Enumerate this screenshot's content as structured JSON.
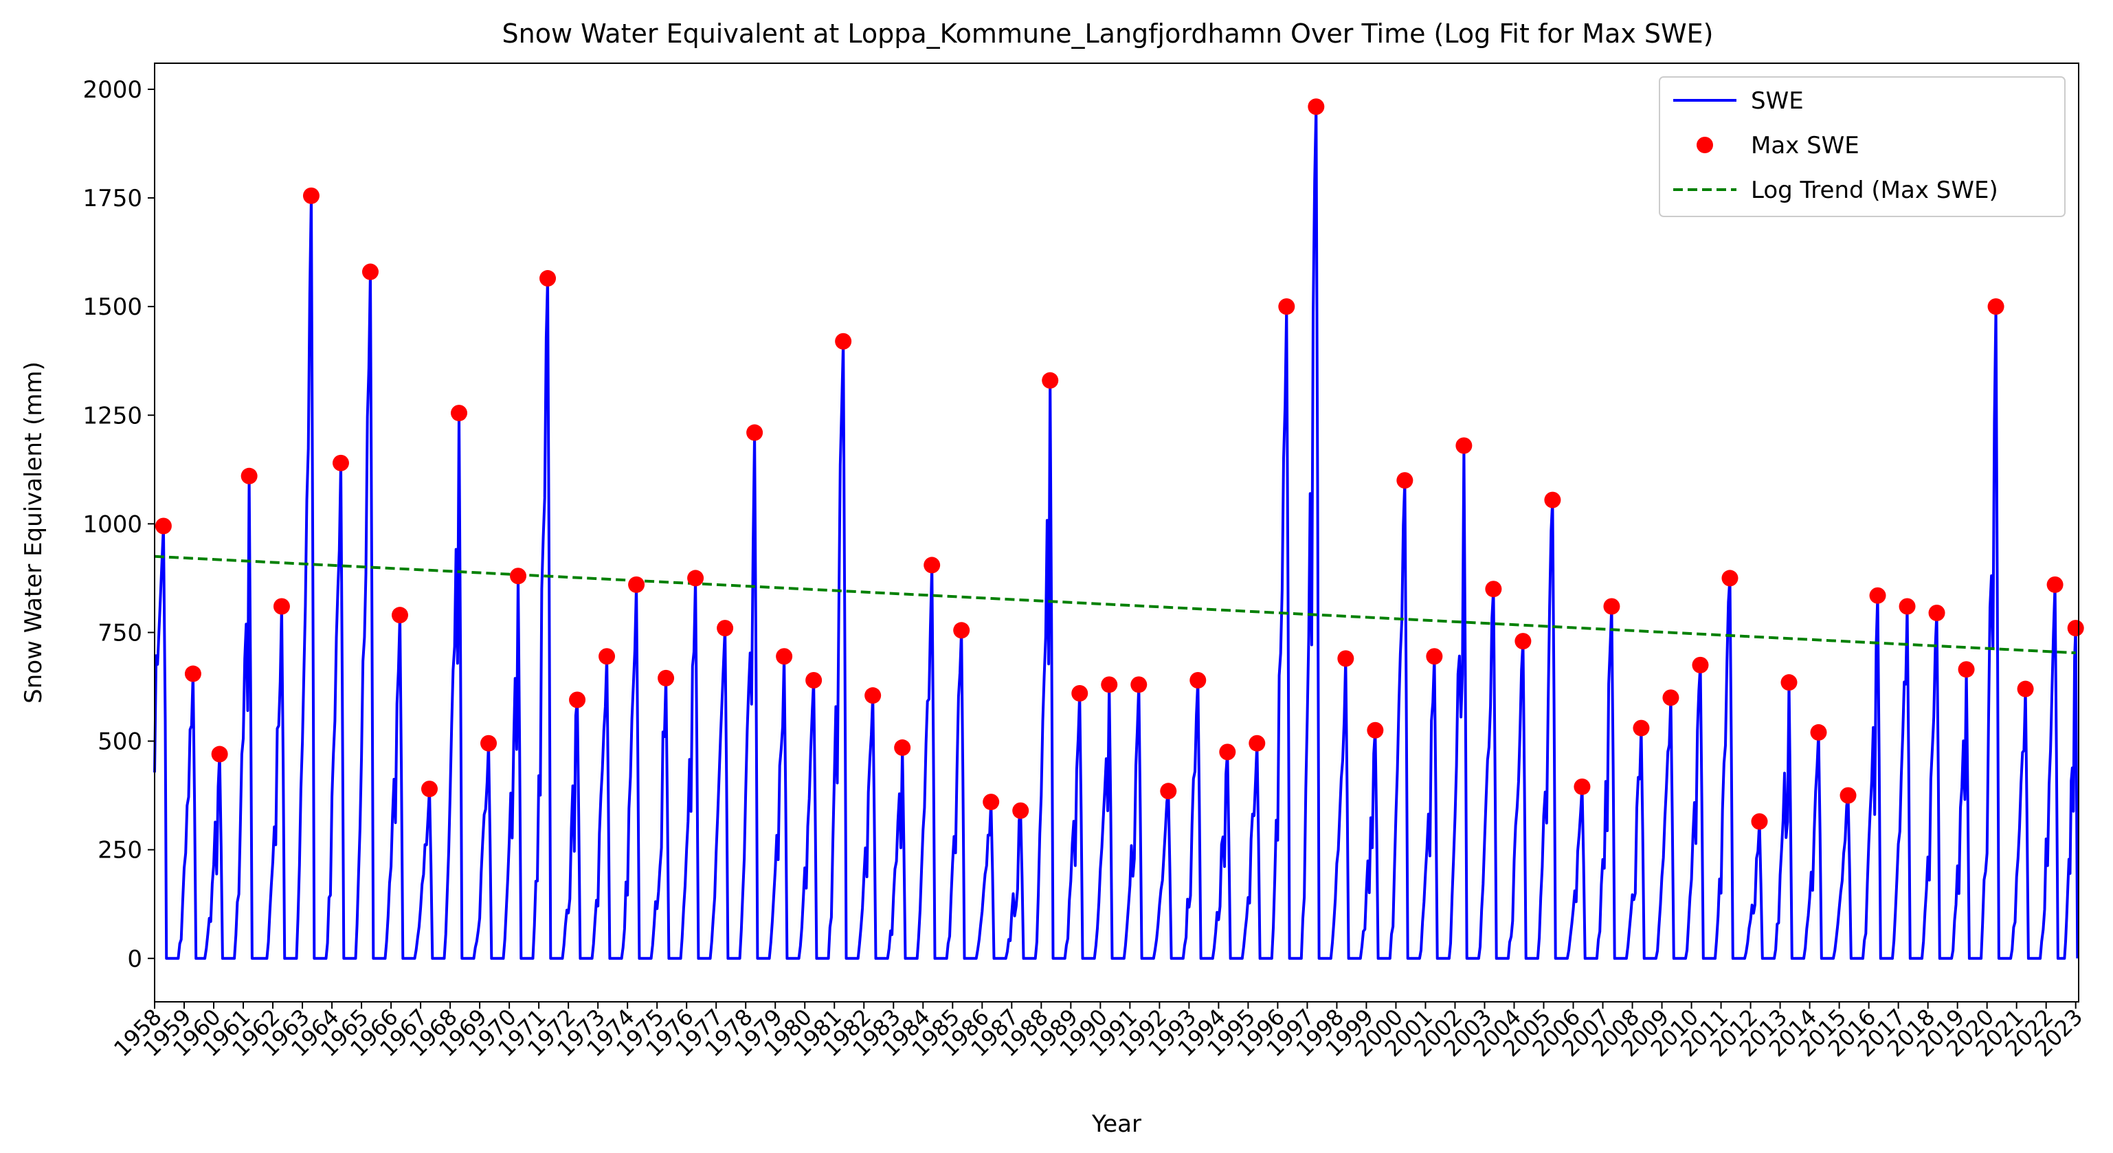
{
  "chart_data": {
    "type": "line",
    "title": "Snow Water Equivalent at Loppa_Kommune_Langfjordhamn Over Time (Log Fit for Max SWE)",
    "xlabel": "Year",
    "ylabel": "Snow Water Equivalent (mm)",
    "xlim": [
      1958,
      2023.1
    ],
    "ylim": [
      -100,
      2060
    ],
    "yticks": [
      0,
      250,
      500,
      750,
      1000,
      1250,
      1500,
      1750,
      2000
    ],
    "xticks": [
      1958,
      1959,
      1960,
      1961,
      1962,
      1963,
      1964,
      1965,
      1966,
      1967,
      1968,
      1969,
      1970,
      1971,
      1972,
      1973,
      1974,
      1975,
      1976,
      1977,
      1978,
      1979,
      1980,
      1981,
      1982,
      1983,
      1984,
      1985,
      1986,
      1987,
      1988,
      1989,
      1990,
      1991,
      1992,
      1993,
      1994,
      1995,
      1996,
      1997,
      1998,
      1999,
      2000,
      2001,
      2002,
      2003,
      2004,
      2005,
      2006,
      2007,
      2008,
      2009,
      2010,
      2011,
      2012,
      2013,
      2014,
      2015,
      2016,
      2017,
      2018,
      2019,
      2020,
      2021,
      2022,
      2023
    ],
    "grid": false,
    "legend_position": "upper right",
    "series": [
      {
        "name": "SWE",
        "kind": "line",
        "color": "#0000ff"
      },
      {
        "name": "Max SWE",
        "kind": "scatter",
        "color": "#ff0000",
        "x": [
          1958.3,
          1959.3,
          1960.2,
          1961.2,
          1962.3,
          1963.3,
          1964.3,
          1965.3,
          1966.3,
          1967.3,
          1968.3,
          1969.3,
          1970.3,
          1971.3,
          1972.3,
          1973.3,
          1974.3,
          1975.3,
          1976.3,
          1977.3,
          1978.3,
          1979.3,
          1980.3,
          1981.3,
          1982.3,
          1983.3,
          1984.3,
          1985.3,
          1986.3,
          1987.3,
          1988.3,
          1989.3,
          1990.3,
          1991.3,
          1992.3,
          1993.3,
          1994.3,
          1995.3,
          1996.3,
          1997.3,
          1998.3,
          1999.3,
          2000.3,
          2001.3,
          2002.3,
          2003.3,
          2004.3,
          2005.3,
          2006.3,
          2007.3,
          2008.3,
          2009.3,
          2010.3,
          2011.3,
          2012.3,
          2013.3,
          2014.3,
          2015.3,
          2016.3,
          2017.3,
          2018.3,
          2019.3,
          2020.3,
          2021.3,
          2022.3,
          2023.0
        ],
        "y": [
          995,
          655,
          470,
          1110,
          810,
          1755,
          1140,
          1580,
          790,
          390,
          1255,
          495,
          880,
          1565,
          595,
          695,
          860,
          645,
          875,
          760,
          1210,
          695,
          640,
          1420,
          605,
          485,
          905,
          755,
          360,
          340,
          1330,
          610,
          630,
          630,
          385,
          640,
          475,
          495,
          1500,
          1960,
          690,
          525,
          1100,
          695,
          1180,
          850,
          730,
          1055,
          395,
          810,
          530,
          600,
          675,
          875,
          315,
          635,
          520,
          375,
          835,
          810,
          795,
          665,
          1500,
          620,
          860,
          760
        ]
      },
      {
        "name": "Log Trend (Max SWE)",
        "kind": "line",
        "style": "dashed",
        "color": "#008000",
        "x": [
          1958,
          2023
        ],
        "y": [
          925,
          703
        ]
      }
    ]
  }
}
